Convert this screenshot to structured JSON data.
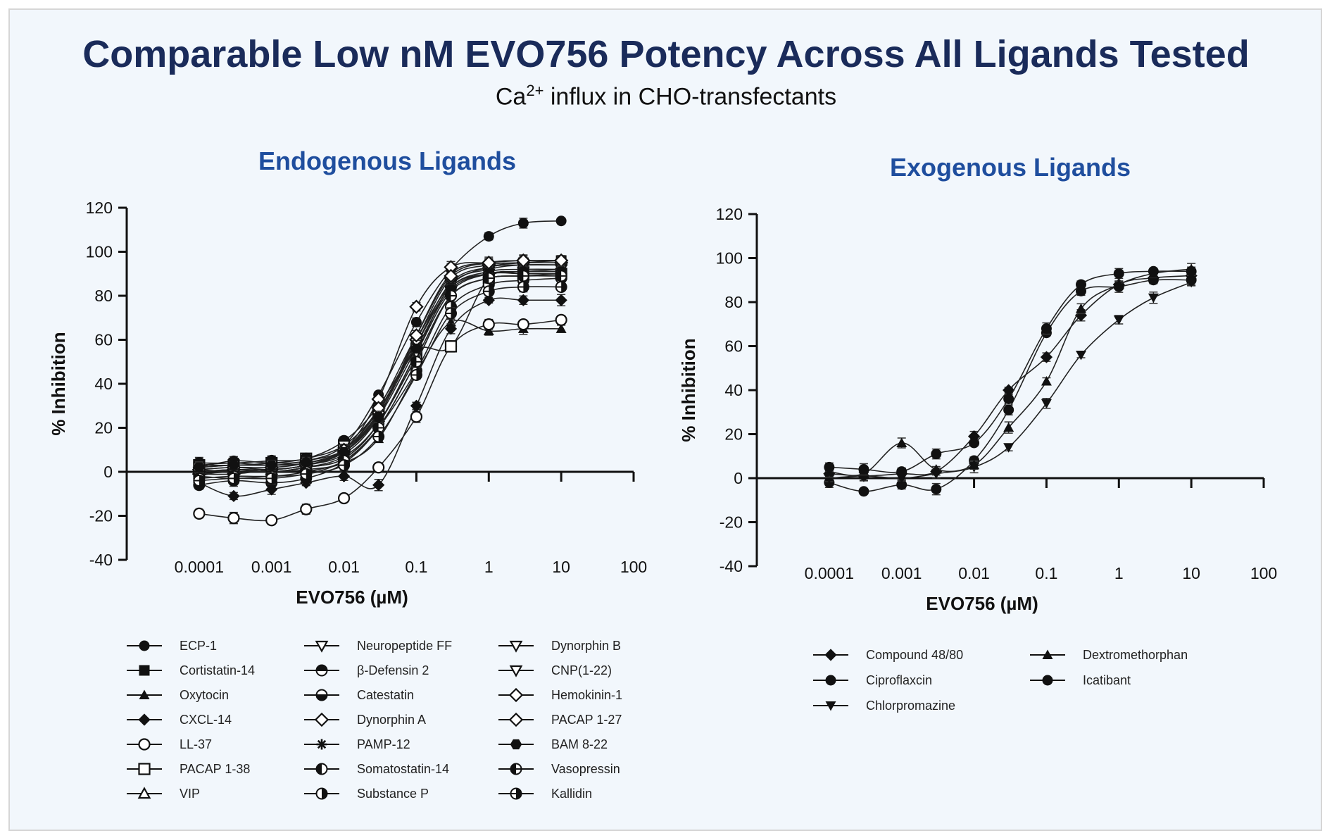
{
  "header": {
    "title": "Comparable Low nM EVO756 Potency Across All Ligands Tested",
    "subtitle_main": "Ca",
    "subtitle_sup": "2+",
    "subtitle_rest": " influx in CHO-transfectants"
  },
  "chart_data": [
    {
      "type": "scatter",
      "title": "Endogenous Ligands",
      "xlabel": "EVO756 (µM)",
      "ylabel": "% Inhibition",
      "xscale": "log",
      "xlim": [
        1e-05,
        100
      ],
      "ylim": [
        -40,
        120
      ],
      "x_ticks": [
        "0.0001",
        "0.001",
        "0.01",
        "0.1",
        "1",
        "10",
        "100"
      ],
      "y_ticks": [
        "120",
        "100",
        "80",
        "60",
        "40",
        "20",
        "0",
        "-20",
        "-40"
      ],
      "x": [
        0.0001,
        0.0003,
        0.001,
        0.003,
        0.01,
        0.03,
        0.1,
        0.3,
        1,
        3,
        10
      ],
      "series": [
        {
          "name": "ECP-1",
          "marker": "circle-filled",
          "values": [
            2,
            5,
            4,
            5,
            12,
            35,
            68,
            92,
            107,
            113,
            114
          ]
        },
        {
          "name": "Cortistatin-14",
          "marker": "square-filled",
          "values": [
            3,
            4,
            3,
            5,
            10,
            27,
            60,
            85,
            93,
            95,
            96
          ]
        },
        {
          "name": "Oxytocin",
          "marker": "triangle-filled",
          "values": [
            0,
            1,
            0,
            1,
            4,
            15,
            45,
            68,
            64,
            65,
            65
          ]
        },
        {
          "name": "CXCL-14",
          "marker": "diamond-filled",
          "values": [
            -5,
            -11,
            -8,
            -5,
            -2,
            -6,
            30,
            65,
            78,
            78,
            78
          ]
        },
        {
          "name": "LL-37",
          "marker": "circle-open",
          "values": [
            -19,
            -21,
            -22,
            -17,
            -12,
            2,
            25,
            57,
            67,
            67,
            69
          ]
        },
        {
          "name": "PACAP 1-38",
          "marker": "square-open",
          "values": [
            3,
            3,
            4,
            6,
            12,
            28,
            55,
            57,
            88,
            90,
            90
          ]
        },
        {
          "name": "VIP",
          "marker": "triangle-open",
          "values": [
            1,
            2,
            1,
            3,
            8,
            25,
            62,
            90,
            95,
            96,
            96
          ]
        },
        {
          "name": "Neuropeptide FF",
          "marker": "triangle-down-open",
          "values": [
            -2,
            1,
            0,
            2,
            7,
            22,
            54,
            85,
            92,
            94,
            94
          ]
        },
        {
          "name": "β-Defensin 2",
          "marker": "circle-half-top",
          "values": [
            4,
            4,
            5,
            6,
            14,
            30,
            58,
            84,
            90,
            90,
            90
          ]
        },
        {
          "name": "Catestatin",
          "marker": "circle-half-bottom",
          "values": [
            -6,
            -4,
            -5,
            -3,
            4,
            20,
            50,
            80,
            88,
            89,
            90
          ]
        },
        {
          "name": "Dynorphin A",
          "marker": "diamond-open",
          "values": [
            -1,
            -1,
            1,
            3,
            10,
            33,
            75,
            93,
            95,
            96,
            96
          ]
        },
        {
          "name": "PAMP-12",
          "marker": "asterisk",
          "values": [
            2,
            3,
            3,
            4,
            10,
            28,
            58,
            84,
            91,
            92,
            92
          ]
        },
        {
          "name": "Somatostatin-14",
          "marker": "circle-half-left",
          "values": [
            1,
            0,
            0,
            2,
            6,
            22,
            52,
            80,
            88,
            89,
            89
          ]
        },
        {
          "name": "Substance P",
          "marker": "circle-half-right",
          "values": [
            -2,
            -3,
            -2,
            -1,
            5,
            20,
            46,
            75,
            85,
            87,
            88
          ]
        },
        {
          "name": "Dynorphin B",
          "marker": "triangle-down-open",
          "values": [
            0,
            1,
            1,
            3,
            9,
            26,
            58,
            86,
            93,
            94,
            94
          ]
        },
        {
          "name": "CNP(1-22)",
          "marker": "triangle-down-open",
          "values": [
            -1,
            0,
            0,
            2,
            6,
            22,
            54,
            82,
            90,
            91,
            92
          ]
        },
        {
          "name": "Hemokinin-1",
          "marker": "diamond-open",
          "values": [
            0,
            1,
            1,
            3,
            9,
            27,
            60,
            88,
            94,
            95,
            95
          ]
        },
        {
          "name": "PACAP 1-27",
          "marker": "diamond-open",
          "values": [
            1,
            2,
            2,
            4,
            10,
            29,
            62,
            89,
            95,
            96,
            96
          ]
        },
        {
          "name": "BAM 8-22",
          "marker": "hexagon-filled",
          "values": [
            2,
            3,
            3,
            4,
            9,
            25,
            56,
            83,
            90,
            91,
            91
          ]
        },
        {
          "name": "Vasopressin",
          "marker": "circle-half-left-open",
          "values": [
            -3,
            -2,
            -2,
            0,
            5,
            20,
            50,
            80,
            88,
            89,
            89
          ]
        },
        {
          "name": "Kallidin",
          "marker": "circle-half-right-open",
          "values": [
            -4,
            -3,
            -3,
            -1,
            3,
            16,
            44,
            72,
            82,
            84,
            84
          ]
        }
      ]
    },
    {
      "type": "scatter",
      "title": "Exogenous Ligands",
      "xlabel": "EVO756 (µM)",
      "ylabel": "% Inhibition",
      "xscale": "log",
      "xlim": [
        1e-05,
        100
      ],
      "ylim": [
        -40,
        120
      ],
      "x_ticks": [
        "0.0001",
        "0.001",
        "0.01",
        "0.1",
        "1",
        "10",
        "100"
      ],
      "y_ticks": [
        "120",
        "100",
        "80",
        "60",
        "40",
        "20",
        "0",
        "-20",
        "-40"
      ],
      "x": [
        0.0001,
        0.0003,
        0.001,
        0.003,
        0.01,
        0.03,
        0.1,
        0.3,
        1,
        3,
        10
      ],
      "series": [
        {
          "name": "Compound 48/80",
          "marker": "diamond-filled",
          "values": [
            2,
            1,
            2,
            3,
            19,
            40,
            55,
            74,
            88,
            91,
            92
          ]
        },
        {
          "name": "Ciproflaxcin",
          "marker": "circle-filled",
          "values": [
            -2,
            -6,
            -3,
            -5,
            8,
            31,
            66,
            85,
            87,
            90,
            90
          ]
        },
        {
          "name": "Chlorpromazine",
          "marker": "triangle-down-filled",
          "values": [
            0,
            1,
            0,
            2,
            5,
            14,
            34,
            56,
            72,
            82,
            89
          ]
        },
        {
          "name": "Dextromethorphan",
          "marker": "triangle-filled",
          "values": [
            3,
            2,
            16,
            4,
            6,
            23,
            44,
            77,
            88,
            93,
            95
          ]
        },
        {
          "name": "Icatibant",
          "marker": "circle-filled",
          "values": [
            5,
            4,
            3,
            11,
            16,
            36,
            68,
            88,
            93,
            94,
            94
          ]
        }
      ]
    }
  ]
}
